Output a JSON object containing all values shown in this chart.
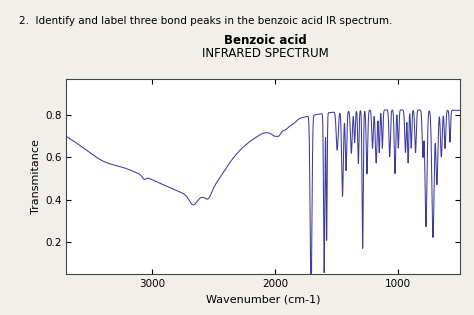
{
  "title_line1": "Benzoic acid",
  "title_line2": "INFRARED SPECTRUM",
  "xlabel": "Wavenumber (cm-1)",
  "ylabel": "Transmitance",
  "question_text": "2.  Identify and label three bond peaks in the benzoic acid IR spectrum.",
  "xlim": [
    3700,
    500
  ],
  "ylim": [
    0.05,
    0.97
  ],
  "yticks": [
    0.2,
    0.4,
    0.6,
    0.8
  ],
  "xticks": [
    3000,
    2000,
    1000
  ],
  "line_color": "#3a3aaa",
  "background_color": "#f0efea",
  "plot_bg": "#ffffff"
}
